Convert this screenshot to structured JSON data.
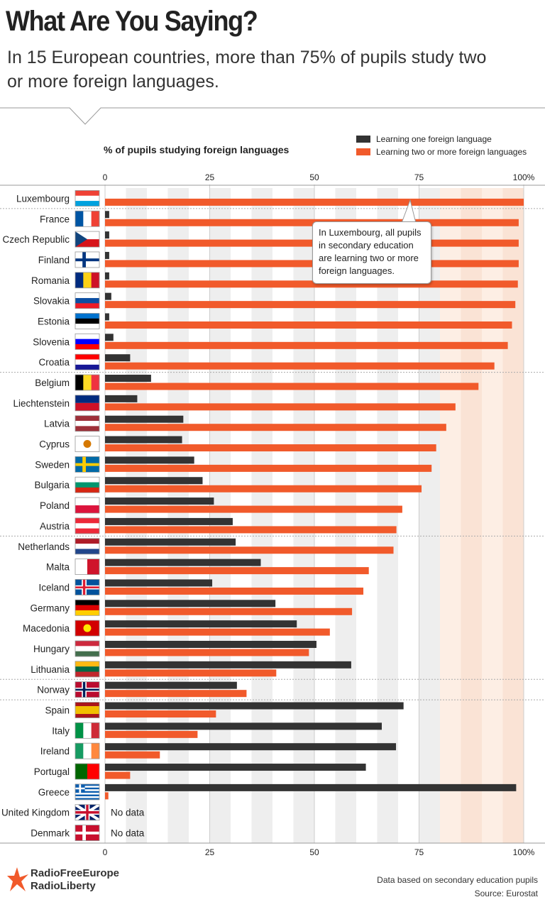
{
  "header": {
    "title": "What Are You Saying?",
    "subtitle": "In 15 European countries, more than 75% of pupils study two or more foreign languages."
  },
  "legend": {
    "one": "Learning one foreign language",
    "two": "Learning two or more foreign languages"
  },
  "callout": {
    "text": "In Luxembourg, all pupils in secondary education are learning two or more foreign languages."
  },
  "colors": {
    "one": "#333333",
    "two": "#f15a2b",
    "highlight": "#fdeee4",
    "stripe": "#eeeeee"
  },
  "footer": {
    "logo_line1": "RadioFreeEurope",
    "logo_line2": "RadioLiberty",
    "note": "Data based on secondary education pupils",
    "source": "Source: Eurostat"
  },
  "chart_data": {
    "type": "bar",
    "orientation": "horizontal",
    "title": "% of pupils studying foreign languages",
    "xlim": [
      0,
      100
    ],
    "xticks": [
      "0",
      "25",
      "50",
      "75",
      "100%"
    ],
    "no_data_label": "No data",
    "categories": [
      "Luxembourg",
      "France",
      "Czech Republic",
      "Finland",
      "Romania",
      "Slovakia",
      "Estonia",
      "Slovenia",
      "Croatia",
      "Belgium",
      "Liechtenstein",
      "Latvia",
      "Cyprus",
      "Sweden",
      "Bulgaria",
      "Poland",
      "Austria",
      "Netherlands",
      "Malta",
      "Iceland",
      "Germany",
      "Macedonia",
      "Hungary",
      "Lithuania",
      "Norway",
      "Spain",
      "Italy",
      "Ireland",
      "Portugal",
      "Greece",
      "United Kingdom",
      "Denmark"
    ],
    "series": [
      {
        "name": "Learning one foreign language",
        "values": [
          0,
          1,
          1,
          1,
          1,
          1.5,
          1,
          2,
          6,
          11,
          7.7,
          18.7,
          18.4,
          21.3,
          23.3,
          26,
          30.5,
          31.2,
          37.2,
          25.6,
          40.7,
          45.8,
          50.5,
          58.8,
          31.5,
          71.3,
          66.1,
          69.5,
          62.3,
          98.2,
          null,
          null
        ]
      },
      {
        "name": "Learning two or more foreign languages",
        "values": [
          100,
          98.8,
          98.8,
          98.8,
          98.6,
          98,
          97.2,
          96.2,
          93,
          89.2,
          83.7,
          81.5,
          79.1,
          78,
          75.6,
          71,
          69.6,
          68.9,
          63,
          61.7,
          59,
          53.7,
          48.7,
          40.9,
          33.8,
          26.5,
          22.1,
          13.1,
          6,
          0.8,
          null,
          null
        ]
      }
    ],
    "flags": [
      {
        "type": "h",
        "colors": [
          "#ef4135",
          "#ffffff",
          "#00a1de"
        ]
      },
      {
        "type": "v",
        "colors": [
          "#0055a4",
          "#ffffff",
          "#ef4135"
        ]
      },
      {
        "type": "cz",
        "colors": [
          "#ffffff",
          "#d7141a",
          "#11457e"
        ]
      },
      {
        "type": "nordic",
        "colors": [
          "#ffffff",
          "#003580"
        ]
      },
      {
        "type": "v",
        "colors": [
          "#002b7f",
          "#fcd116",
          "#ce1126"
        ]
      },
      {
        "type": "h",
        "colors": [
          "#ffffff",
          "#0b4ea2",
          "#ee1c25"
        ]
      },
      {
        "type": "h",
        "colors": [
          "#0072ce",
          "#000000",
          "#ffffff"
        ]
      },
      {
        "type": "h",
        "colors": [
          "#ffffff",
          "#0000ff",
          "#ff0000"
        ]
      },
      {
        "type": "h",
        "colors": [
          "#ff0000",
          "#ffffff",
          "#171796"
        ]
      },
      {
        "type": "v",
        "colors": [
          "#000000",
          "#fdda24",
          "#ef3340"
        ]
      },
      {
        "type": "h2",
        "colors": [
          "#002b7f",
          "#ce1126"
        ]
      },
      {
        "type": "h",
        "colors": [
          "#9e3039",
          "#ffffff",
          "#9e3039"
        ]
      },
      {
        "type": "plain",
        "colors": [
          "#ffffff",
          "#d57800"
        ]
      },
      {
        "type": "nordic",
        "colors": [
          "#006aa7",
          "#fecc00"
        ]
      },
      {
        "type": "h",
        "colors": [
          "#ffffff",
          "#00966e",
          "#d62612"
        ]
      },
      {
        "type": "h2",
        "colors": [
          "#ffffff",
          "#dc143c"
        ]
      },
      {
        "type": "h",
        "colors": [
          "#ed2939",
          "#ffffff",
          "#ed2939"
        ]
      },
      {
        "type": "h",
        "colors": [
          "#ae1c28",
          "#ffffff",
          "#21468b"
        ]
      },
      {
        "type": "v2",
        "colors": [
          "#ffffff",
          "#cf142b"
        ]
      },
      {
        "type": "nordic2",
        "colors": [
          "#02529c",
          "#ffffff",
          "#dc1e35"
        ]
      },
      {
        "type": "h",
        "colors": [
          "#000000",
          "#dd0000",
          "#ffce00"
        ]
      },
      {
        "type": "plain",
        "colors": [
          "#d20000",
          "#ffe600"
        ]
      },
      {
        "type": "h",
        "colors": [
          "#cd2a3e",
          "#ffffff",
          "#436f4d"
        ]
      },
      {
        "type": "h",
        "colors": [
          "#fdb913",
          "#006a44",
          "#c1272d"
        ]
      },
      {
        "type": "nordic2",
        "colors": [
          "#ba0c2f",
          "#ffffff",
          "#00205b"
        ]
      },
      {
        "type": "es",
        "colors": [
          "#aa151b",
          "#f1bf00",
          "#aa151b"
        ]
      },
      {
        "type": "v",
        "colors": [
          "#009246",
          "#ffffff",
          "#ce2b37"
        ]
      },
      {
        "type": "v",
        "colors": [
          "#169b62",
          "#ffffff",
          "#ff883e"
        ]
      },
      {
        "type": "v2",
        "colors": [
          "#006600",
          "#ff0000"
        ]
      },
      {
        "type": "gr",
        "colors": [
          "#0d5eaf",
          "#ffffff"
        ]
      },
      {
        "type": "uk",
        "colors": [
          "#012169",
          "#ffffff",
          "#c8102e"
        ]
      },
      {
        "type": "nordic",
        "colors": [
          "#c8102e",
          "#ffffff"
        ]
      }
    ]
  }
}
